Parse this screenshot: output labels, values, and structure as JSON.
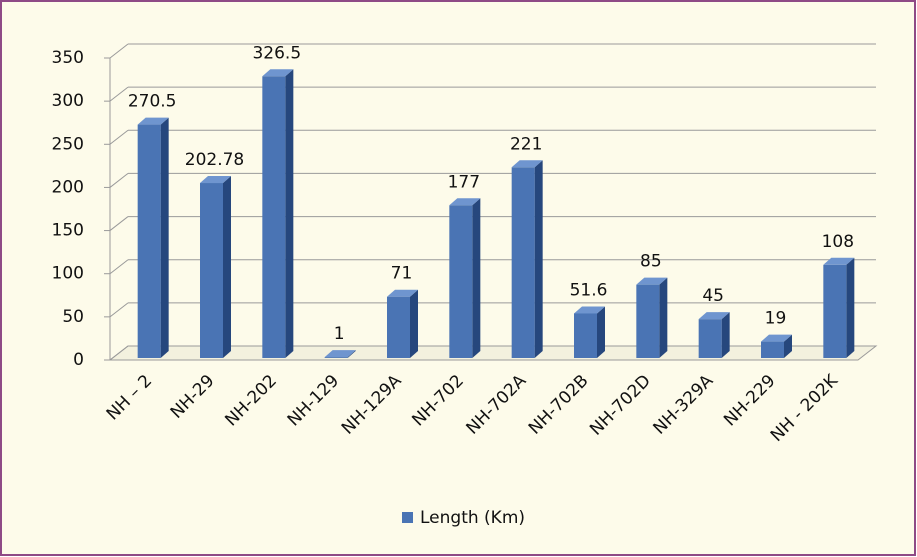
{
  "chart_data": {
    "type": "bar",
    "categories": [
      "NH – 2",
      "NH-29",
      "NH-202",
      "NH-129",
      "NH-129A",
      "NH-702",
      "NH-702A",
      "NH-702B",
      "NH-702D",
      "NH-329A",
      "NH-229",
      "NH - 202K"
    ],
    "series": [
      {
        "name": "Length (Km)",
        "color": "#4a74b4",
        "values": [
          270.5,
          202.78,
          326.5,
          1,
          71,
          177,
          221,
          51.6,
          85,
          45,
          19,
          108
        ]
      }
    ],
    "ylim": [
      0,
      350
    ],
    "yticks": [
      0,
      50,
      100,
      150,
      200,
      250,
      300,
      350
    ],
    "grid": true,
    "legend": "bottom"
  }
}
